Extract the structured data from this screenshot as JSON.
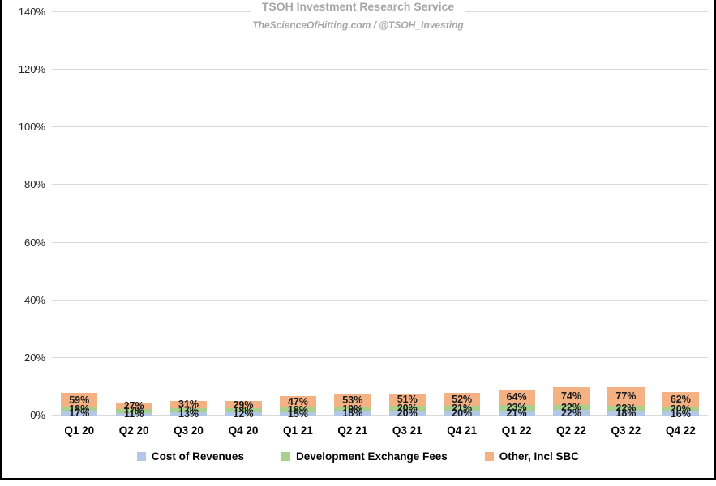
{
  "header": {
    "title": "TSOH Investment Research Service",
    "subtitle": "TheScienceOfHitting.com / @TSOH_Investing"
  },
  "chart_data": {
    "type": "bar",
    "stacked": true,
    "title": "TSOH Investment Research Service",
    "subtitle": "TheScienceOfHitting.com / @TSOH_Investing",
    "categories": [
      "Q1 20",
      "Q2 20",
      "Q3 20",
      "Q4 20",
      "Q1 21",
      "Q2 21",
      "Q3 21",
      "Q4 21",
      "Q1 22",
      "Q2 22",
      "Q3 22",
      "Q4 22"
    ],
    "series": [
      {
        "name": "Cost of Revenues",
        "color": "#b4c7e7",
        "values": [
          17,
          11,
          13,
          12,
          15,
          18,
          20,
          20,
          21,
          22,
          18,
          16
        ]
      },
      {
        "name": "Development Exchange Fees",
        "color": "#a9d18e",
        "values": [
          18,
          17,
          17,
          18,
          18,
          19,
          20,
          21,
          23,
          22,
          22,
          20
        ]
      },
      {
        "name": "Other, Incl SBC",
        "color": "#f4b183",
        "values": [
          59,
          27,
          31,
          29,
          47,
          53,
          51,
          52,
          64,
          74,
          77,
          62
        ]
      }
    ],
    "xlabel": "",
    "ylabel": "",
    "ylim": [
      0,
      140
    ],
    "ytick_step": 20,
    "ytick_labels": [
      "0%",
      "20%",
      "40%",
      "60%",
      "80%",
      "100%",
      "120%",
      "140%"
    ],
    "data_label_suffix": "%",
    "grid": true,
    "legend_position": "bottom"
  },
  "colors": {
    "grid": "#d9d9d9",
    "title_text": "#a6a6a6",
    "axis_text": "#262626",
    "label_text": "#1a1a1a",
    "border": "#000000"
  }
}
